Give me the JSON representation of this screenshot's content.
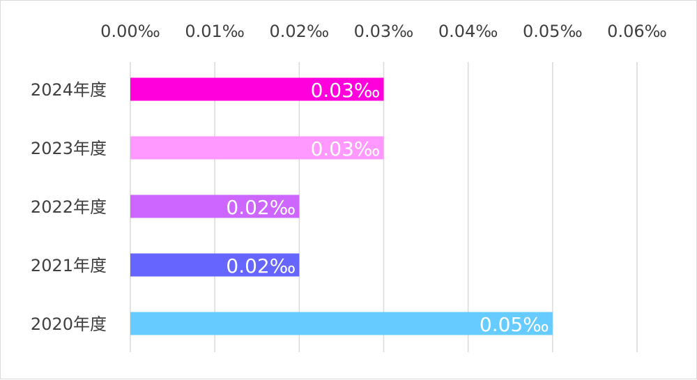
{
  "chart_data": {
    "type": "bar",
    "orientation": "horizontal",
    "title": "",
    "xlabel": "",
    "ylabel": "",
    "xlim": [
      0,
      0.06
    ],
    "x_ticks": [
      0,
      0.01,
      0.02,
      0.03,
      0.04,
      0.05,
      0.06
    ],
    "x_tick_labels": [
      "0.00‰",
      "0.01‰",
      "0.02‰",
      "0.03‰",
      "0.04‰",
      "0.05‰",
      "0.06‰"
    ],
    "x_axis_position": "top",
    "grid": "vertical",
    "legend": "none",
    "categories": [
      "2024年度",
      "2023年度",
      "2022年度",
      "2021年度",
      "2020年度"
    ],
    "values": [
      0.03,
      0.03,
      0.02,
      0.02,
      0.05
    ],
    "data_labels": [
      "0.03‰",
      "0.03‰",
      "0.02‰",
      "0.02‰",
      "0.05‰"
    ],
    "colors": [
      "#ff00dd",
      "#ff99ff",
      "#cc66ff",
      "#6666ff",
      "#66ccff"
    ],
    "grid_color": "#d9d9d9",
    "text_color": "#404040",
    "label_color": "#ffffff"
  }
}
